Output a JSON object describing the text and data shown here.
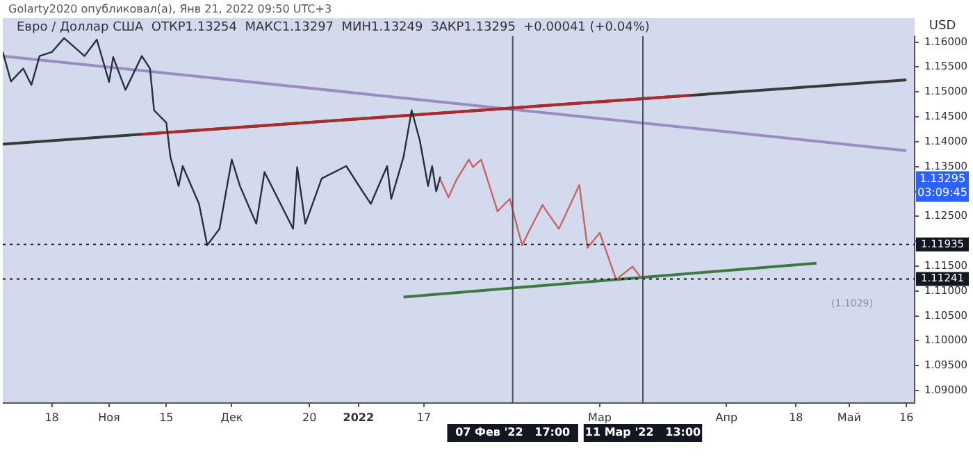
{
  "chart_data": {
    "type": "line",
    "title": "Golarty2020 опубликовал(а), Янв 21, 2022 09:50 UTC+3",
    "subtitle": "Евро / Доллар США  ОТКР1.13254  МАКС1.13297  МИН1.13249  ЗАКР1.13295  +0.00041 (+0.04%)",
    "ylabel": "USD",
    "series": [
      {
        "color": "#2a2e39",
        "x": [
          "2021-10-06",
          "2021-10-08",
          "2021-10-11",
          "2021-10-13",
          "2021-10-15",
          "2021-10-18",
          "2021-10-21",
          "2021-10-26",
          "2021-10-29",
          "2021-11-01",
          "2021-11-02",
          "2021-11-05",
          "2021-11-09",
          "2021-11-11",
          "2021-11-12",
          "2021-11-15",
          "2021-11-16",
          "2021-11-18",
          "2021-11-19",
          "2021-11-23",
          "2021-11-25",
          "2021-11-28",
          "2021-12-01",
          "2021-12-03",
          "2021-12-07",
          "2021-12-09",
          "2021-12-16",
          "2021-12-17",
          "2021-12-19",
          "2021-12-23",
          "2021-12-29",
          "2022-01-02",
          "2022-01-04",
          "2022-01-08",
          "2022-01-09",
          "2022-01-12",
          "2022-01-14",
          "2022-01-16",
          "2022-01-18",
          "2022-01-19",
          "2022-01-20",
          "2022-01-21"
        ],
        "values": [
          1.158,
          1.1521,
          1.1547,
          1.1514,
          1.1572,
          1.158,
          1.1608,
          1.1572,
          1.1605,
          1.152,
          1.157,
          1.1504,
          1.1572,
          1.1547,
          1.1463,
          1.1438,
          1.1369,
          1.1311,
          1.1351,
          1.1275,
          1.1192,
          1.1225,
          1.1364,
          1.1311,
          1.1235,
          1.1339,
          1.1225,
          1.1349,
          1.1235,
          1.1326,
          1.1351,
          1.13,
          1.1275,
          1.1351,
          1.1285,
          1.1369,
          1.1463,
          1.1402,
          1.1311,
          1.1351,
          1.13,
          1.13295
        ]
      },
      {
        "color": "#c86464",
        "x": [
          "2022-01-21",
          "2022-01-23",
          "2022-01-25",
          "2022-01-28",
          "2022-01-29",
          "2022-01-31",
          "2022-02-04",
          "2022-02-07",
          "2022-02-10",
          "2022-02-12",
          "2022-02-15",
          "2022-02-16",
          "2022-02-19",
          "2022-02-20",
          "2022-02-24",
          "2022-02-26",
          "2022-03-01",
          "2022-03-05",
          "2022-03-09",
          "2022-03-11"
        ],
        "values": [
          1.1324,
          1.1288,
          1.1324,
          1.1364,
          1.1349,
          1.1364,
          1.126,
          1.1285,
          1.1192,
          1.1225,
          1.1273,
          1.126,
          1.1225,
          1.1242,
          1.1313,
          1.1187,
          1.1217,
          1.1123,
          1.1149,
          1.1128
        ]
      },
      {
        "type": "line",
        "color": "#b02a2a",
        "x": [
          "2021-11-09",
          "2022-03-23"
        ],
        "values": [
          1.1415,
          1.1493
        ]
      },
      {
        "type": "line",
        "color": "#3f7a3f",
        "x": [
          "2022-01-12",
          "2022-04-23"
        ],
        "values": [
          1.1088,
          1.1156
        ]
      },
      {
        "type": "line",
        "color": "#3a3a3a",
        "x": [
          "2021-10-06",
          "2022-05-15"
        ],
        "values": [
          1.1395,
          1.1524
        ]
      },
      {
        "type": "line",
        "color": "#9a8cc0",
        "x": [
          "2021-10-06",
          "2022-05-15"
        ],
        "values": [
          1.1572,
          1.1382
        ]
      }
    ],
    "xlim": [
      "2021-10-06",
      "2022-05-17"
    ],
    "xticks": [
      {
        "value": "2021-10-18",
        "label": "18"
      },
      {
        "value": "2021-11-01",
        "label": "Ноя"
      },
      {
        "value": "2021-11-15",
        "label": "15"
      },
      {
        "value": "2021-12-01",
        "label": "Дек"
      },
      {
        "value": "2021-12-20",
        "label": "20"
      },
      {
        "value": "2022-01-01",
        "label": "2022"
      },
      {
        "value": "2022-01-17",
        "label": "17"
      },
      {
        "value": "2022-03-01",
        "label": "Мар"
      },
      {
        "value": "2022-04-01",
        "label": "Апр"
      },
      {
        "value": "2022-04-18",
        "label": "18"
      },
      {
        "value": "2022-05-01",
        "label": "Май"
      },
      {
        "value": "2022-05-15",
        "label": "16"
      }
    ],
    "ylim": [
      1.0875,
      1.1612
    ],
    "yticks": [
      {
        "value": 1.09,
        "label": "1.09000"
      },
      {
        "value": 1.095,
        "label": "1.09500"
      },
      {
        "value": 1.1,
        "label": "1.10000"
      },
      {
        "value": 1.105,
        "label": "1.10500"
      },
      {
        "value": 1.11,
        "label": "1.11000"
      },
      {
        "value": 1.115,
        "label": "1.11500"
      },
      {
        "value": 1.12,
        "label": null
      },
      {
        "value": 1.125,
        "label": "1.12500"
      },
      {
        "value": 1.13,
        "label": null
      },
      {
        "value": 1.135,
        "label": "1.13500"
      },
      {
        "value": 1.14,
        "label": "1.14000"
      },
      {
        "value": 1.145,
        "label": "1.14500"
      },
      {
        "value": 1.15,
        "label": "1.15000"
      },
      {
        "value": 1.155,
        "label": "1.15500"
      },
      {
        "value": 1.16,
        "label": "1.16000"
      }
    ],
    "ref_lines": [
      {
        "axis": "y",
        "value": 1.11935,
        "label": "1.11935",
        "line_style": "dotted",
        "color": "#111111"
      },
      {
        "axis": "y",
        "value": 1.11241,
        "label": "1.11241",
        "line_style": "dotted",
        "color": "#111111"
      },
      {
        "axis": "x",
        "value": "2022-02-07T17:00",
        "label": "07 Фев '22   17:00",
        "line_style": "solid",
        "color": "#4a4e5a"
      },
      {
        "axis": "x",
        "value": "2022-03-11T13:00",
        "label": "11 Мар '22   13:00",
        "line_style": "solid",
        "color": "#4a4e5a"
      }
    ],
    "annotations": [
      "1.13295",
      "03:09:45",
      "(1.1029)"
    ],
    "grid": false,
    "legend": false,
    "marker": "none",
    "line_style": "solid"
  }
}
